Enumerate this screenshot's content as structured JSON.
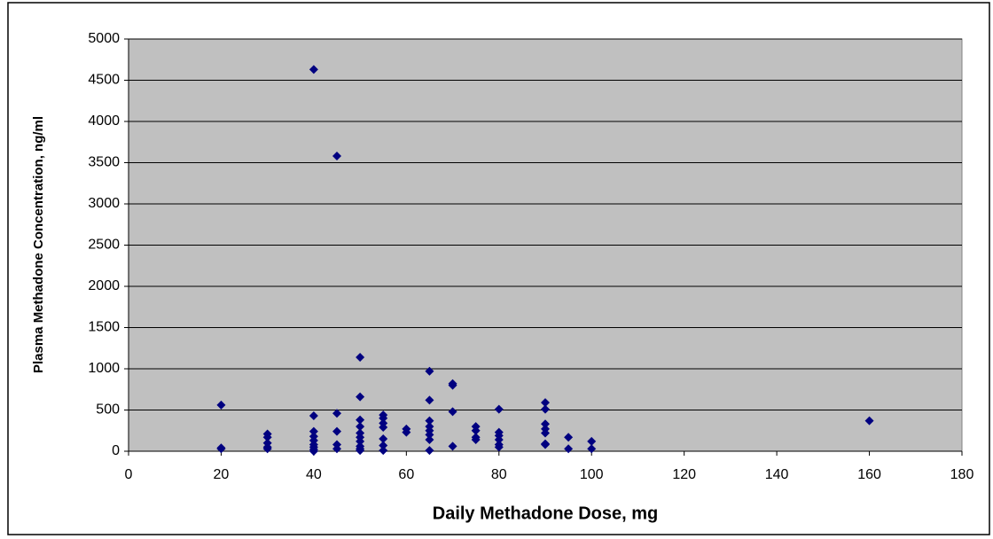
{
  "chart_data": {
    "type": "scatter",
    "xlabel": "Daily Methadone Dose, mg",
    "ylabel": "Plasma Methadone Concentration, ng/ml",
    "color": "#000080",
    "x": [
      20,
      20,
      20,
      30,
      30,
      30,
      30,
      30,
      40,
      40,
      40,
      40,
      40,
      40,
      40,
      40,
      40,
      45,
      45,
      45,
      45,
      45,
      50,
      50,
      50,
      50,
      50,
      50,
      50,
      50,
      50,
      50,
      55,
      55,
      55,
      55,
      55,
      55,
      55,
      60,
      60,
      65,
      65,
      65,
      65,
      65,
      65,
      65,
      65,
      70,
      70,
      70,
      70,
      75,
      75,
      75,
      75,
      80,
      80,
      80,
      80,
      80,
      80,
      90,
      90,
      90,
      90,
      90,
      90,
      90,
      95,
      95,
      100,
      100,
      160
    ],
    "values": [
      560,
      40,
      30,
      210,
      170,
      100,
      50,
      30,
      4630,
      430,
      240,
      180,
      130,
      80,
      50,
      20,
      0,
      3580,
      460,
      240,
      80,
      30,
      1140,
      660,
      380,
      300,
      220,
      170,
      120,
      60,
      30,
      10,
      440,
      400,
      340,
      290,
      150,
      70,
      10,
      270,
      230,
      970,
      620,
      370,
      300,
      250,
      200,
      140,
      10,
      820,
      800,
      480,
      60,
      300,
      250,
      170,
      140,
      510,
      230,
      190,
      140,
      80,
      50,
      590,
      510,
      330,
      270,
      220,
      90,
      80,
      170,
      30,
      120,
      30,
      370
    ],
    "xlim": [
      0,
      180
    ],
    "xticks": [
      0,
      20,
      40,
      60,
      80,
      100,
      120,
      140,
      160,
      180
    ],
    "ylim": [
      0,
      5000
    ],
    "yticks": [
      0,
      500,
      1000,
      1500,
      2000,
      2500,
      3000,
      3500,
      4000,
      4500,
      5000
    ],
    "grid": true
  }
}
